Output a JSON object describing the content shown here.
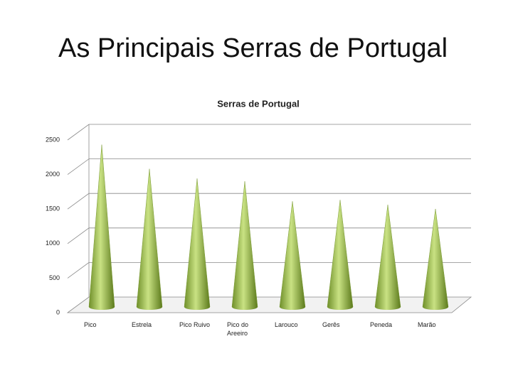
{
  "page_title": "As Principais Serras de Portugal",
  "chart_data": {
    "type": "cone",
    "title": "Serras de Portugal",
    "categories": [
      "Pico",
      "Estrela",
      "Pico Ruivo",
      "Pico do Areeiro",
      "Larouco",
      "Gerês",
      "Peneda",
      "Marão"
    ],
    "values": [
      2350,
      2000,
      1860,
      1820,
      1530,
      1550,
      1480,
      1420
    ],
    "color": "#9bbb59",
    "ylim": [
      0,
      2500
    ],
    "yticks": [
      0,
      500,
      1000,
      1500,
      2000,
      2500
    ],
    "grid": true
  }
}
